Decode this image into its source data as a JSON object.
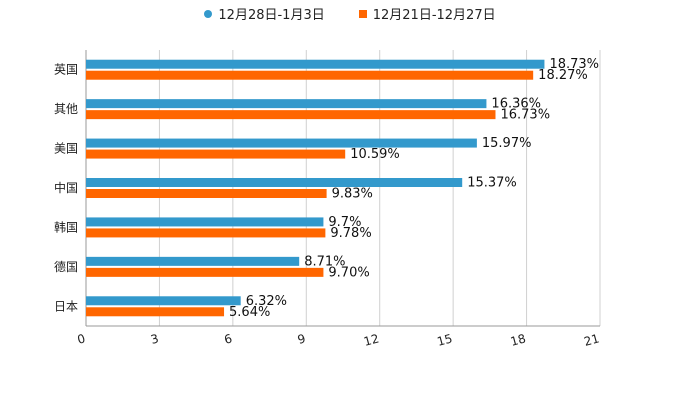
{
  "chart_data": {
    "type": "bar",
    "orientation": "horizontal",
    "categories": [
      "英国",
      "其他",
      "美国",
      "中国",
      "韩国",
      "德国",
      "日本"
    ],
    "series": [
      {
        "name": "12月28日-1月3日",
        "color": "#3399cc",
        "values": [
          18.73,
          16.36,
          15.97,
          15.37,
          9.7,
          8.71,
          6.32
        ],
        "labels": [
          "18.73%",
          "16.36%",
          "15.97%",
          "15.37%",
          "9.7%",
          "8.71%",
          "6.32%"
        ]
      },
      {
        "name": "12月21日-12月27日",
        "color": "#ff6600",
        "values": [
          18.27,
          16.73,
          10.59,
          9.83,
          9.78,
          9.7,
          5.64
        ],
        "labels": [
          "18.27%",
          "16.73%",
          "10.59%",
          "9.83%",
          "9.78%",
          "9.70%",
          "5.64%"
        ]
      }
    ],
    "xlim": [
      0,
      21
    ],
    "xticks": [
      "0",
      "3",
      "6",
      "9",
      "12",
      "15",
      "18",
      "21"
    ],
    "grid": true,
    "legend_position": "top-center"
  }
}
